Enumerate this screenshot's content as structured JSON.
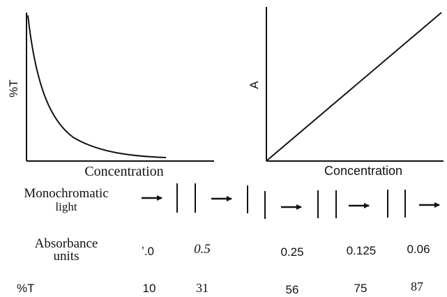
{
  "left_plot": {
    "ylabel": "%T",
    "xlabel": "Concentration"
  },
  "right_plot": {
    "ylabel": "A",
    "xlabel": "Concentration"
  },
  "table": {
    "light_label_line1": "Monochromatic",
    "light_label_line2": "light",
    "absorbance_label_line1": "Absorbance",
    "absorbance_label_line2": "units",
    "transmittance_label": "%T",
    "absorbance_values": [
      "ʼ.0",
      "0.5",
      "0.25",
      "0.125",
      "0.06"
    ],
    "transmittance_values": [
      "10",
      "31",
      "56",
      "75",
      "87"
    ]
  },
  "colors": {
    "ink": "#111111"
  }
}
